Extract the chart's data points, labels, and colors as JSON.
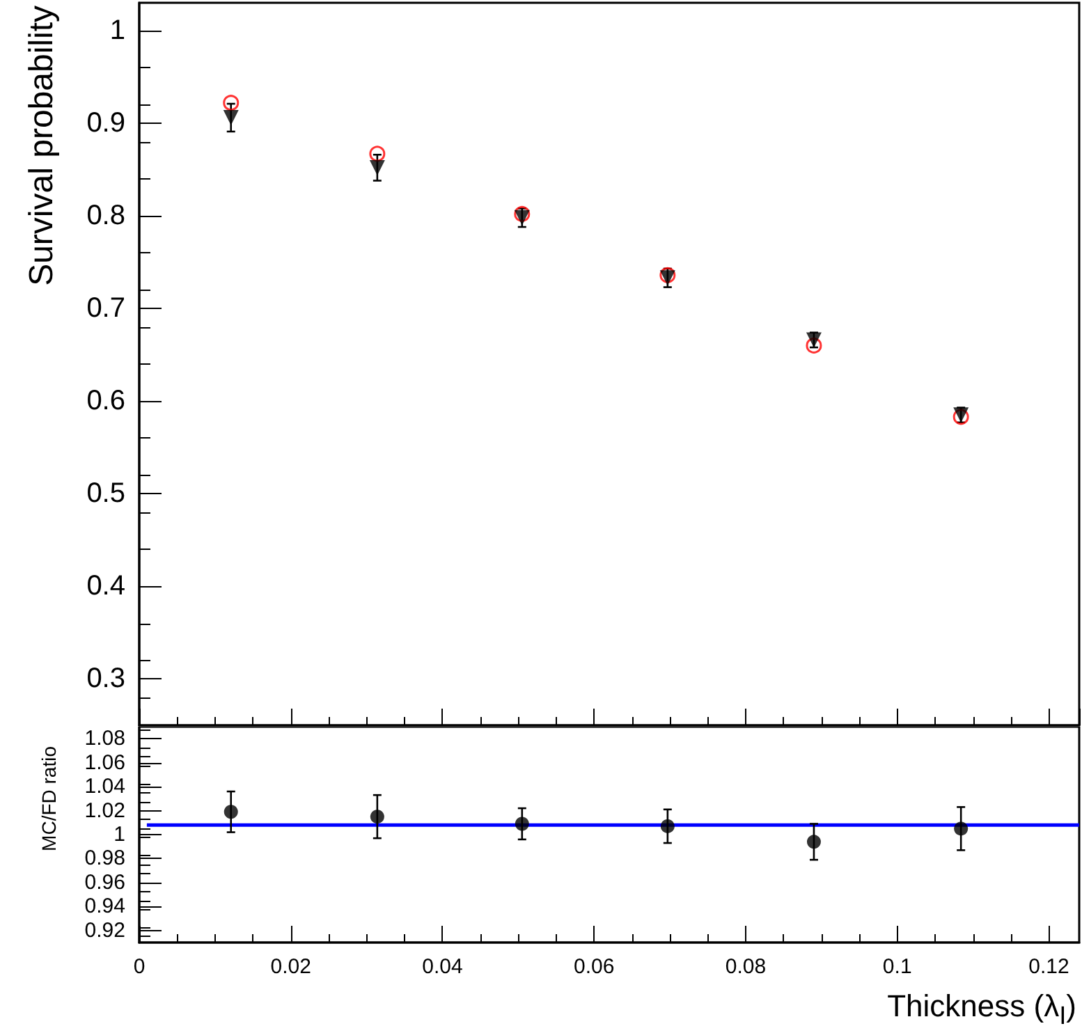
{
  "chart_data": [
    {
      "type": "scatter",
      "ylabel": "Survival probability",
      "xlim": [
        0,
        0.124
      ],
      "ylim": [
        0.25,
        1.03
      ],
      "yticks": [
        0.3,
        0.4,
        0.5,
        0.6,
        0.7,
        0.8,
        0.9,
        1
      ],
      "tick_labels": "y",
      "grid": false,
      "series": [
        {
          "color": "#000000",
          "marker": "triangle",
          "x": [
            0.0121,
            0.0314,
            0.0505,
            0.0697,
            0.089,
            0.1084
          ],
          "values": [
            0.906,
            0.852,
            0.798,
            0.733,
            0.666,
            0.585
          ],
          "errors": [
            0.015,
            0.014,
            0.01,
            0.01,
            0.008,
            0.008
          ]
        },
        {
          "color": "#ff0000",
          "marker": "circle",
          "x": [
            0.0121,
            0.0314,
            0.0505,
            0.0697,
            0.089,
            0.1084
          ],
          "values": [
            0.922,
            0.867,
            0.802,
            0.736,
            0.66,
            0.583
          ]
        }
      ]
    },
    {
      "type": "scatter",
      "xlabel": "Thickness (λ$_{I}$)",
      "ylabel": "MC/FD ratio",
      "xlim": [
        0,
        0.124
      ],
      "xticks": [
        0,
        0.02,
        0.04,
        0.06,
        0.08,
        0.1,
        0.12
      ],
      "ylim": [
        0.91,
        1.09
      ],
      "yticks": [
        0.92,
        0.94,
        0.96,
        0.98,
        1,
        1.02,
        1.04,
        1.06,
        1.08
      ],
      "grid": false,
      "series": [
        {
          "color": "#000000",
          "marker": "circle",
          "x": [
            0.0121,
            0.0314,
            0.0505,
            0.0697,
            0.089,
            0.1084
          ],
          "values": [
            1.019,
            1.015,
            1.009,
            1.007,
            0.994,
            1.005
          ],
          "errors": [
            0.017,
            0.018,
            0.013,
            0.014,
            0.015,
            0.018
          ]
        },
        {
          "type": "line",
          "color": "#0000ff",
          "marker": "none",
          "x": [
            0.001,
            0.124
          ],
          "values": [
            1.008,
            1.008
          ]
        }
      ]
    }
  ]
}
